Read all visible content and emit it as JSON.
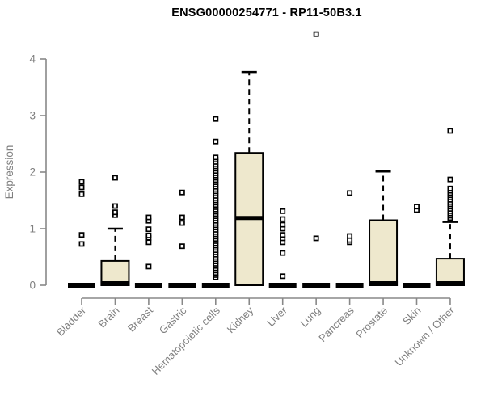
{
  "title": "ENSG00000254771 - RP11-50B3.1",
  "colors": {
    "background": "#FFFFFF",
    "box_fill": "#EEE8CD",
    "box_stroke": "#000000",
    "median": "#000000",
    "whisker": "#000000",
    "outlier_stroke": "#000000",
    "outlier_fill": "#FFFFFF",
    "axis_line": "#888888",
    "axis_text": "#808080",
    "title_text": "#000000"
  },
  "chart_data": {
    "type": "boxplot",
    "title": "ENSG00000254771 - RP11-50B3.1",
    "xlabel": "",
    "ylabel": "Expression",
    "ylim": [
      0,
      4.5
    ],
    "yticks": [
      0,
      1,
      2,
      3,
      4
    ],
    "grid": false,
    "legend": false,
    "categories": [
      "Bladder",
      "Brain",
      "Breast",
      "Gastric",
      "Hematopoietic cells",
      "Kidney",
      "Liver",
      "Lung",
      "Pancreas",
      "Prostate",
      "Skin",
      "Unknown / Other"
    ],
    "series": [
      {
        "category": "Bladder",
        "q1": 0,
        "median": 0,
        "q3": 0,
        "whisker_low": 0,
        "whisker_high": 0,
        "outliers": [
          0.73,
          0.89,
          1.61,
          1.73,
          1.83
        ]
      },
      {
        "category": "Brain",
        "q1": 0,
        "median": 0,
        "q3": 0.43,
        "whisker_low": 0,
        "whisker_high": 1.0,
        "outliers": [
          1.24,
          1.29,
          1.4,
          1.9
        ]
      },
      {
        "category": "Breast",
        "q1": 0,
        "median": 0,
        "q3": 0,
        "whisker_low": 0,
        "whisker_high": 0,
        "outliers": [
          0.33,
          0.76,
          0.84,
          0.88,
          0.99,
          1.14,
          1.2
        ]
      },
      {
        "category": "Gastric",
        "q1": 0,
        "median": 0,
        "q3": 0,
        "whisker_low": 0,
        "whisker_high": 0,
        "outliers": [
          0.69,
          1.1,
          1.2,
          1.64
        ]
      },
      {
        "category": "Hematopoietic cells",
        "q1": 0,
        "median": 0,
        "q3": 0,
        "whisker_low": 0,
        "whisker_high": 0,
        "outliers": [
          0.14,
          0.18,
          0.22,
          0.26,
          0.3,
          0.34,
          0.38,
          0.42,
          0.46,
          0.5,
          0.54,
          0.58,
          0.62,
          0.66,
          0.7,
          0.74,
          0.78,
          0.82,
          0.86,
          0.9,
          0.94,
          0.98,
          1.02,
          1.06,
          1.1,
          1.14,
          1.18,
          1.22,
          1.26,
          1.3,
          1.34,
          1.38,
          1.42,
          1.46,
          1.5,
          1.54,
          1.58,
          1.62,
          1.66,
          1.7,
          1.74,
          1.78,
          1.82,
          1.86,
          1.9,
          1.94,
          1.98,
          2.02,
          2.06,
          2.1,
          2.14,
          2.18,
          2.22,
          2.26,
          2.54,
          2.94
        ]
      },
      {
        "category": "Kidney",
        "q1": 0,
        "median": 1.19,
        "q3": 2.34,
        "whisker_low": 0,
        "whisker_high": 3.77,
        "outliers": []
      },
      {
        "category": "Liver",
        "q1": 0,
        "median": 0,
        "q3": 0,
        "whisker_low": 0,
        "whisker_high": 0,
        "outliers": [
          0.16,
          0.57,
          0.76,
          0.83,
          0.89,
          1.0,
          1.07,
          1.17,
          1.31
        ]
      },
      {
        "category": "Lung",
        "q1": 0,
        "median": 0,
        "q3": 0,
        "whisker_low": 0,
        "whisker_high": 0,
        "outliers": [
          0.83,
          4.44
        ]
      },
      {
        "category": "Pancreas",
        "q1": 0,
        "median": 0,
        "q3": 0,
        "whisker_low": 0,
        "whisker_high": 0,
        "outliers": [
          0.76,
          0.8,
          0.87,
          1.63
        ]
      },
      {
        "category": "Prostate",
        "q1": 0,
        "median": 0,
        "q3": 1.15,
        "whisker_low": 0,
        "whisker_high": 2.01,
        "outliers": []
      },
      {
        "category": "Skin",
        "q1": 0,
        "median": 0,
        "q3": 0,
        "whisker_low": 0,
        "whisker_high": 0,
        "outliers": [
          1.33,
          1.39
        ]
      },
      {
        "category": "Unknown / Other",
        "q1": 0,
        "median": 0,
        "q3": 0.47,
        "whisker_low": 0,
        "whisker_high": 1.12,
        "outliers": [
          1.19,
          1.23,
          1.27,
          1.31,
          1.35,
          1.39,
          1.43,
          1.47,
          1.51,
          1.55,
          1.59,
          1.63,
          1.67,
          1.71,
          1.87,
          2.73
        ]
      }
    ]
  }
}
